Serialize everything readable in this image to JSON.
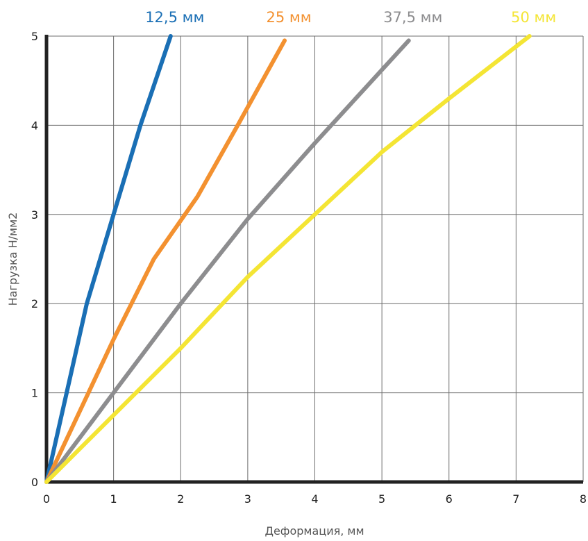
{
  "chart_data": {
    "type": "line",
    "title": "",
    "xlabel": "Деформация, мм",
    "ylabel": "Нагрузка Н/мм2",
    "xlim": [
      0,
      8
    ],
    "ylim": [
      0,
      5
    ],
    "x_ticks": [
      "0",
      "1",
      "2",
      "3",
      "4",
      "5",
      "6",
      "7",
      "8"
    ],
    "y_ticks": [
      "0",
      "1",
      "2",
      "3",
      "4",
      "5"
    ],
    "grid": true,
    "legend_position": "top",
    "series": [
      {
        "name": "12,5 мм",
        "color": "#1a6fb5",
        "x": [
          0,
          0.6,
          1.0,
          1.4,
          1.85
        ],
        "y": [
          0,
          2.0,
          3.0,
          4.0,
          5.0
        ]
      },
      {
        "name": "25 мм",
        "color": "#f39130",
        "x": [
          0,
          1.0,
          1.6,
          2.25,
          2.85,
          3.55
        ],
        "y": [
          0,
          1.6,
          2.5,
          3.2,
          4.0,
          4.95
        ]
      },
      {
        "name": "37,5 мм",
        "color": "#8d8d8f",
        "x": [
          0,
          1.0,
          2.0,
          3.0,
          4.0,
          5.4
        ],
        "y": [
          0,
          1.0,
          2.0,
          2.95,
          3.8,
          4.95
        ]
      },
      {
        "name": "50 мм",
        "color": "#f4e534",
        "x": [
          0,
          1.0,
          2.0,
          3.0,
          4.0,
          5.0,
          6.0,
          7.2
        ],
        "y": [
          0,
          0.75,
          1.5,
          2.3,
          3.0,
          3.7,
          4.3,
          5.0
        ]
      }
    ]
  }
}
